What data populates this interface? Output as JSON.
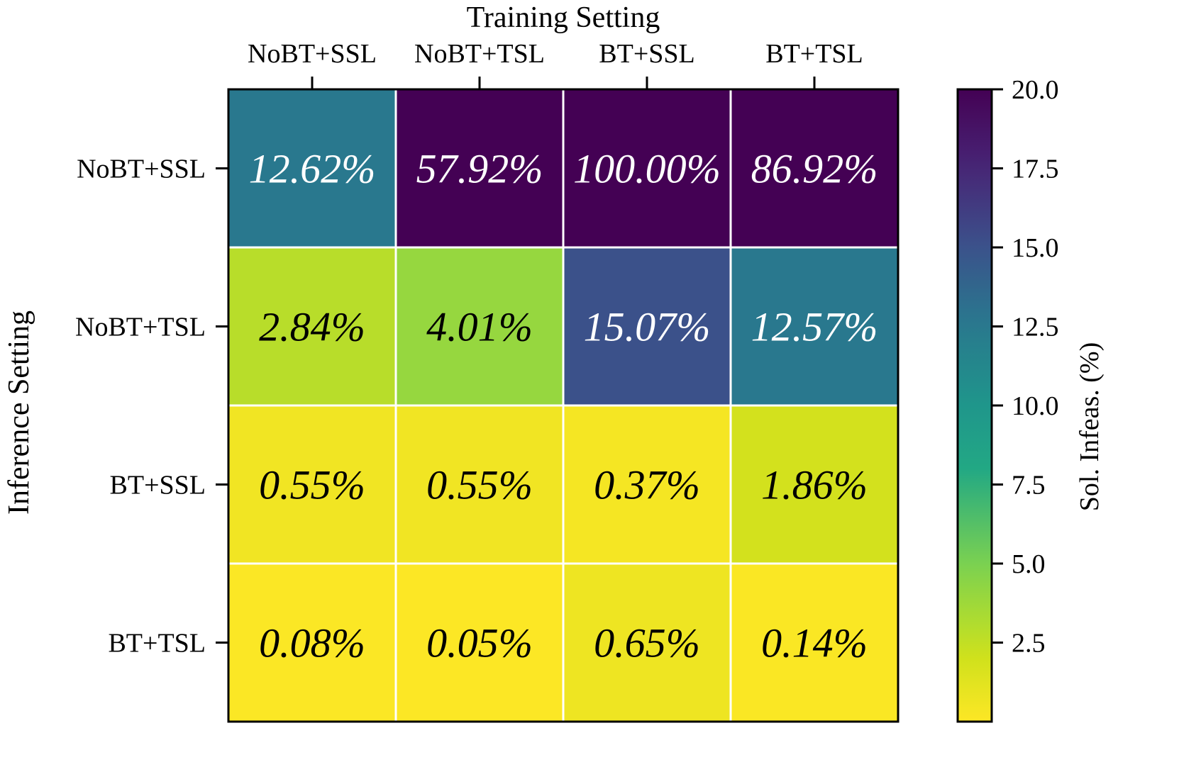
{
  "chart_data": {
    "type": "heatmap",
    "title": "",
    "xlabel": "Training Setting",
    "ylabel": "Inference Setting",
    "x_categories": [
      "NoBT+SSL",
      "NoBT+TSL",
      "BT+SSL",
      "BT+TSL"
    ],
    "y_categories": [
      "NoBT+SSL",
      "NoBT+TSL",
      "BT+SSL",
      "BT+TSL"
    ],
    "values": [
      [
        12.62,
        57.92,
        100.0,
        86.92
      ],
      [
        2.84,
        4.01,
        15.07,
        12.57
      ],
      [
        0.55,
        0.55,
        0.37,
        1.86
      ],
      [
        0.08,
        0.05,
        0.65,
        0.14
      ]
    ],
    "cell_labels": [
      [
        "12.62%",
        "57.92%",
        "100.00%",
        "86.92%"
      ],
      [
        "2.84%",
        "4.01%",
        "15.07%",
        "12.57%"
      ],
      [
        "0.55%",
        "0.55%",
        "0.37%",
        "1.86%"
      ],
      [
        "0.08%",
        "0.05%",
        "0.65%",
        "0.14%"
      ]
    ],
    "colorbar": {
      "label": "Sol. Infeas. (%)",
      "range": [
        0,
        20
      ],
      "ticks": [
        2.5,
        5.0,
        7.5,
        10.0,
        12.5,
        15.0,
        17.5,
        20.0
      ],
      "tick_labels": [
        "2.5",
        "5.0",
        "7.5",
        "10.0",
        "12.5",
        "15.0",
        "17.5",
        "20.0"
      ],
      "colormap": "viridis_r"
    },
    "x_axis_position": "top",
    "grid": true,
    "grid_color": "#ffffff",
    "text_color_dark": "#000000",
    "text_color_light": "#ffffff"
  }
}
